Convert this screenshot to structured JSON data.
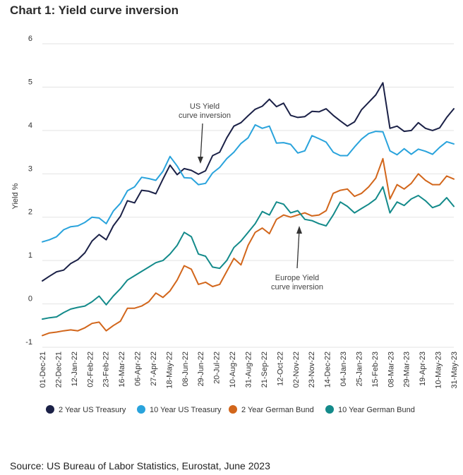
{
  "title": "Chart 1: Yield curve inversion",
  "source": "Source: US Bureau of Labor Statistics, Eurostat, June 2023",
  "chart_data": {
    "type": "line",
    "ylabel": "Yield %",
    "xlabel": "",
    "ylim": [
      -1,
      6
    ],
    "yticks": [
      "6",
      "5",
      "4",
      "3",
      "2",
      "1",
      "0",
      "-1"
    ],
    "grid": "horizontal",
    "legend_position": "bottom",
    "x_tick_labels": [
      "01-Dec-21",
      "22-Dec-21",
      "12-Jan-22",
      "02-Feb-22",
      "23-Feb-22",
      "16-Mar-22",
      "06-Apr-22",
      "27-Apr-22",
      "18-May-22",
      "08-Jun-22",
      "29-Jun-22",
      "20-Jul-22",
      "10-Aug-22",
      "31-Aug-22",
      "21-Sep-22",
      "12-Oct-22",
      "02-Nov-22",
      "23-Nov-22",
      "14-Dec-22",
      "04-Jan-23",
      "25-Jan-23",
      "15-Feb-23",
      "08-Mar-23",
      "29-Mar-23",
      "19-Apr-23",
      "10-May-23",
      "31-May-23"
    ],
    "annotations": [
      {
        "text_lines": [
          "US Yield",
          "curve inversion"
        ]
      },
      {
        "text_lines": [
          "Europe Yield",
          "curve inversion"
        ]
      }
    ],
    "series": [
      {
        "name": "2 Year US Treasury",
        "color": "#1b2147",
        "values": [
          0.53,
          0.64,
          0.74,
          0.78,
          0.93,
          1.02,
          1.18,
          1.45,
          1.6,
          1.48,
          1.8,
          2.02,
          2.38,
          2.33,
          2.62,
          2.6,
          2.54,
          2.88,
          3.2,
          2.98,
          3.12,
          3.08,
          2.99,
          3.07,
          3.42,
          3.5,
          3.83,
          4.1,
          4.18,
          4.34,
          4.49,
          4.56,
          4.72,
          4.55,
          4.63,
          4.35,
          4.3,
          4.32,
          4.44,
          4.43,
          4.5,
          4.35,
          4.22,
          4.1,
          4.2,
          4.48,
          4.65,
          4.82,
          5.1,
          4.05,
          4.1,
          3.98,
          4.0,
          4.18,
          4.05,
          4.0,
          4.06,
          4.3,
          4.5
        ]
      },
      {
        "name": "10 Year US Treasury",
        "color": "#29a3dc",
        "values": [
          1.43,
          1.48,
          1.55,
          1.71,
          1.78,
          1.8,
          1.88,
          2.0,
          1.98,
          1.85,
          2.14,
          2.32,
          2.61,
          2.7,
          2.92,
          2.89,
          2.85,
          3.06,
          3.4,
          3.18,
          2.91,
          2.9,
          2.75,
          2.78,
          3.02,
          3.15,
          3.35,
          3.5,
          3.7,
          3.83,
          4.13,
          4.05,
          4.1,
          3.71,
          3.72,
          3.68,
          3.48,
          3.53,
          3.88,
          3.81,
          3.73,
          3.5,
          3.42,
          3.42,
          3.62,
          3.8,
          3.93,
          3.98,
          3.97,
          3.53,
          3.44,
          3.58,
          3.45,
          3.57,
          3.52,
          3.45,
          3.61,
          3.74,
          3.69
        ]
      },
      {
        "name": "2 Year German Bund",
        "color": "#d2661b",
        "values": [
          -0.73,
          -0.67,
          -0.65,
          -0.62,
          -0.6,
          -0.62,
          -0.55,
          -0.45,
          -0.42,
          -0.62,
          -0.5,
          -0.4,
          -0.1,
          -0.1,
          -0.05,
          0.05,
          0.25,
          0.15,
          0.3,
          0.55,
          0.88,
          0.8,
          0.45,
          0.5,
          0.4,
          0.45,
          0.75,
          1.05,
          0.9,
          1.35,
          1.65,
          1.75,
          1.62,
          1.95,
          2.05,
          2.0,
          2.05,
          2.1,
          2.03,
          2.05,
          2.15,
          2.55,
          2.62,
          2.65,
          2.48,
          2.55,
          2.7,
          2.9,
          3.35,
          2.42,
          2.75,
          2.65,
          2.78,
          3.0,
          2.85,
          2.75,
          2.75,
          2.95,
          2.88
        ]
      },
      {
        "name": "10 Year German Bund",
        "color": "#138a8a",
        "values": [
          -0.35,
          -0.32,
          -0.3,
          -0.2,
          -0.12,
          -0.08,
          -0.05,
          0.05,
          0.18,
          -0.02,
          0.18,
          0.35,
          0.55,
          0.65,
          0.75,
          0.85,
          0.95,
          1.0,
          1.15,
          1.35,
          1.65,
          1.55,
          1.15,
          1.1,
          0.85,
          0.82,
          1.0,
          1.3,
          1.45,
          1.65,
          1.85,
          2.13,
          2.05,
          2.35,
          2.3,
          2.1,
          2.15,
          1.95,
          1.92,
          1.85,
          1.8,
          2.05,
          2.35,
          2.25,
          2.1,
          2.2,
          2.3,
          2.42,
          2.7,
          2.1,
          2.35,
          2.27,
          2.42,
          2.5,
          2.38,
          2.22,
          2.28,
          2.45,
          2.25
        ]
      }
    ]
  }
}
